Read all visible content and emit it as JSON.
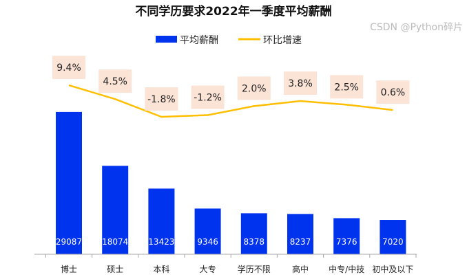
{
  "chart_data": {
    "type": "bar+line",
    "title": "不同学历要求2022年一季度平均薪酬",
    "categories": [
      "博士",
      "硕士",
      "本科",
      "大专",
      "学历不限",
      "高中",
      "中专/中技",
      "初中及以下"
    ],
    "series": [
      {
        "name": "平均薪酬",
        "type": "bar",
        "color": "#0033ee",
        "values": [
          29087,
          18074,
          13423,
          9346,
          8378,
          8237,
          7376,
          7020
        ]
      },
      {
        "name": "环比增速",
        "type": "line",
        "axis": "secondary",
        "color": "#ffbf00",
        "values": [
          9.4,
          4.5,
          -1.8,
          -1.2,
          2.0,
          3.8,
          2.5,
          0.6
        ],
        "labels": [
          "9.4%",
          "4.5%",
          "-1.8%",
          "-1.2%",
          "2.0%",
          "3.8%",
          "2.5%",
          "0.6%"
        ],
        "label_bg": "#fbe3d6"
      }
    ],
    "legend": "top",
    "grid": false
  },
  "watermark": "CSDN @Python碎片"
}
